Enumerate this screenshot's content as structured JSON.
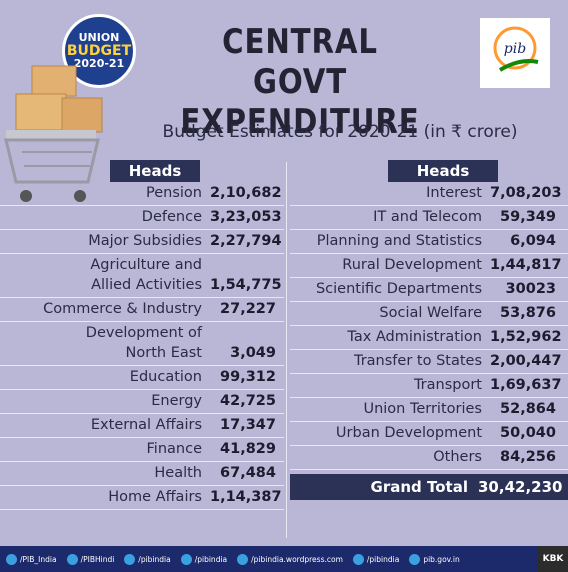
{
  "badge": {
    "line1": "UNION",
    "line2": "BUDGET",
    "line3": "2020-21"
  },
  "title": {
    "line1": "CENTRAL GOVT",
    "line2": "EXPENDITURE"
  },
  "subtitle": "Budget Estimates for 2020-21 (in ₹ crore)",
  "left": {
    "header": "Heads",
    "rows": [
      {
        "name": "Pension",
        "value": "2,10,682"
      },
      {
        "name": "Defence",
        "value": "3,23,053"
      },
      {
        "name": "Major Subsidies",
        "value": "2,27,794"
      },
      {
        "name": "Agriculture and|Allied Activities",
        "value": "1,54,775"
      },
      {
        "name": "Commerce & Industry",
        "value": "27,227"
      },
      {
        "name": "Development of|North East",
        "value": "3,049"
      },
      {
        "name": "Education",
        "value": "99,312"
      },
      {
        "name": "Energy",
        "value": "42,725"
      },
      {
        "name": "External Affairs",
        "value": "17,347"
      },
      {
        "name": "Finance",
        "value": "41,829"
      },
      {
        "name": "Health",
        "value": "67,484"
      },
      {
        "name": "Home Affairs",
        "value": "1,14,387"
      }
    ]
  },
  "right": {
    "header": "Heads",
    "rows": [
      {
        "name": "Interest",
        "value": "7,08,203"
      },
      {
        "name": "IT and Telecom",
        "value": "59,349"
      },
      {
        "name": "Planning and Statistics",
        "value": "6,094"
      },
      {
        "name": "Rural Development",
        "value": "1,44,817"
      },
      {
        "name": "Scientific Departments",
        "value": "30023"
      },
      {
        "name": "Social Welfare",
        "value": "53,876"
      },
      {
        "name": "Tax Administration",
        "value": "1,52,962"
      },
      {
        "name": "Transfer to States",
        "value": "2,00,447"
      },
      {
        "name": "Transport",
        "value": "1,69,637"
      },
      {
        "name": "Union Territories",
        "value": "52,864"
      },
      {
        "name": "Urban Development",
        "value": "50,040"
      },
      {
        "name": "Others",
        "value": "84,256"
      }
    ],
    "grand_total_label": "Grand Total",
    "grand_total_value": "30,42,230"
  },
  "footer": {
    "items": [
      {
        "icon": "twitter-icon",
        "label": "/PIB_India"
      },
      {
        "icon": "twitter-icon",
        "label": "/PIBHindi"
      },
      {
        "icon": "facebook-icon",
        "label": "/pibindia"
      },
      {
        "icon": "youtube-icon",
        "label": "/pibindia"
      },
      {
        "icon": "wordpress-icon",
        "label": "/pibindia.wordpress.com"
      },
      {
        "icon": "instagram-icon",
        "label": "/pibindia"
      },
      {
        "icon": "globe-icon",
        "label": "pib.gov.in"
      }
    ],
    "tag": "KBK"
  },
  "colors": {
    "background": "#b9b6d6",
    "header_bg": "#2c3156",
    "badge_bg": "#1f3f8f",
    "footer_bg": "#1c2a6b"
  }
}
